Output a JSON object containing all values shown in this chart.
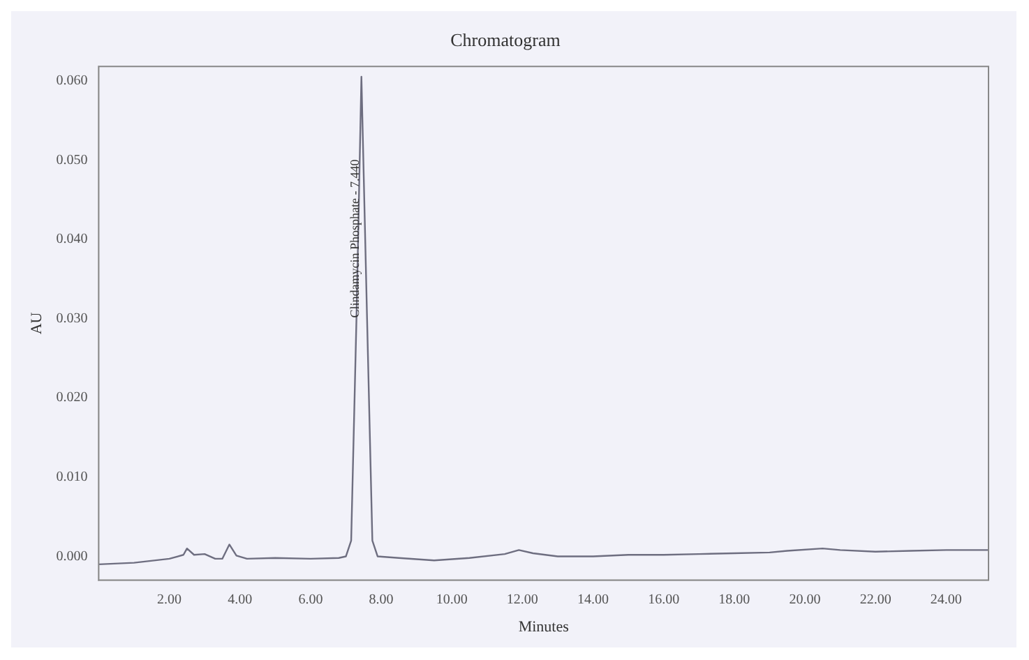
{
  "chart_data": {
    "type": "line",
    "title": "Chromatogram",
    "xlabel": "Minutes",
    "ylabel": "AU",
    "annotations": [
      {
        "text": "Clindamycin Phosphate - 7.440",
        "x": 7.44,
        "y": 0.04
      }
    ],
    "series": [
      {
        "color": "#6e6e80",
        "x": [
          0,
          1,
          2,
          2.4,
          2.5,
          2.7,
          3,
          3.3,
          3.5,
          3.7,
          3.9,
          4.2,
          5,
          6,
          6.8,
          7,
          7.15,
          7.3,
          7.44,
          7.6,
          7.75,
          7.9,
          8.5,
          9.5,
          10.5,
          11.5,
          11.9,
          12.3,
          13,
          14,
          15,
          16,
          17,
          18,
          19,
          19.5,
          20.5,
          21,
          22,
          23,
          24,
          25.2
        ],
        "values": [
          -0.001,
          -0.0008,
          -0.0003,
          0.0002,
          0.001,
          0.0002,
          0.0003,
          -0.0003,
          -0.0003,
          0.0015,
          0.0001,
          -0.0003,
          -0.0002,
          -0.0003,
          -0.0002,
          0,
          0.002,
          0.03,
          0.0605,
          0.03,
          0.002,
          0,
          -0.0002,
          -0.0005,
          -0.0002,
          0.0003,
          0.0008,
          0.0004,
          0,
          0,
          0.0002,
          0.0002,
          0.0003,
          0.0004,
          0.0005,
          0.0007,
          0.001,
          0.0008,
          0.0006,
          0.0007,
          0.0008,
          0.0008
        ]
      }
    ],
    "xlim": [
      0,
      25.2
    ],
    "ylim": [
      -0.003,
      0.0618
    ],
    "xticks": [
      {
        "value": 2,
        "label": "2.00"
      },
      {
        "value": 4,
        "label": "4.00"
      },
      {
        "value": 6,
        "label": "6.00"
      },
      {
        "value": 8,
        "label": "8.00"
      },
      {
        "value": 10,
        "label": "10.00"
      },
      {
        "value": 12,
        "label": "12.00"
      },
      {
        "value": 14,
        "label": "14.00"
      },
      {
        "value": 16,
        "label": "16.00"
      },
      {
        "value": 18,
        "label": "18.00"
      },
      {
        "value": 20,
        "label": "20.00"
      },
      {
        "value": 22,
        "label": "22.00"
      },
      {
        "value": 24,
        "label": "24.00"
      }
    ],
    "yticks": [
      {
        "value": 0,
        "label": "0.000"
      },
      {
        "value": 0.01,
        "label": "0.010"
      },
      {
        "value": 0.02,
        "label": "0.020"
      },
      {
        "value": 0.03,
        "label": "0.030"
      },
      {
        "value": 0.04,
        "label": "0.040"
      },
      {
        "value": 0.05,
        "label": "0.050"
      },
      {
        "value": 0.06,
        "label": "0.060"
      }
    ],
    "grid": false,
    "legend": false,
    "marker": "none",
    "line_style": "solid"
  }
}
